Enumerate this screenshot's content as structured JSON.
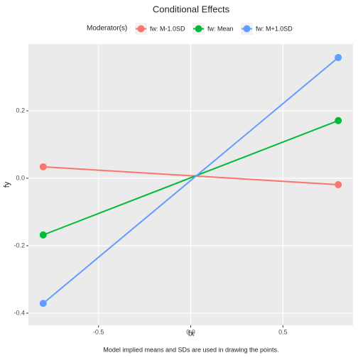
{
  "chart_data": {
    "type": "line",
    "title": "Conditional Effects",
    "x_label": "fx",
    "y_label": "fy",
    "legend_title": "Moderator(s)",
    "caption": "Model implied means and SDs are used in drawing the points.",
    "x": [
      -0.8,
      0.8
    ],
    "series": [
      {
        "name": "fw: M-1.0SD",
        "color": "#F8766D",
        "values": [
          0.034,
          -0.019
        ]
      },
      {
        "name": "fw: Mean",
        "color": "#00BA38",
        "values": [
          -0.168,
          0.171
        ]
      },
      {
        "name": "fw: M+1.0SD",
        "color": "#619CFF",
        "values": [
          -0.371,
          0.358
        ]
      }
    ],
    "xlim": [
      -0.88,
      0.88
    ],
    "ylim": [
      -0.436,
      0.398
    ],
    "xticks": [
      -0.5,
      {
        "value": 0,
        "label": "0.0"
      },
      0.5
    ],
    "yticks": [
      -0.4,
      -0.2,
      {
        "value": 0,
        "label": "0.0"
      },
      0.2
    ],
    "grid": true,
    "legend_position": "top"
  }
}
